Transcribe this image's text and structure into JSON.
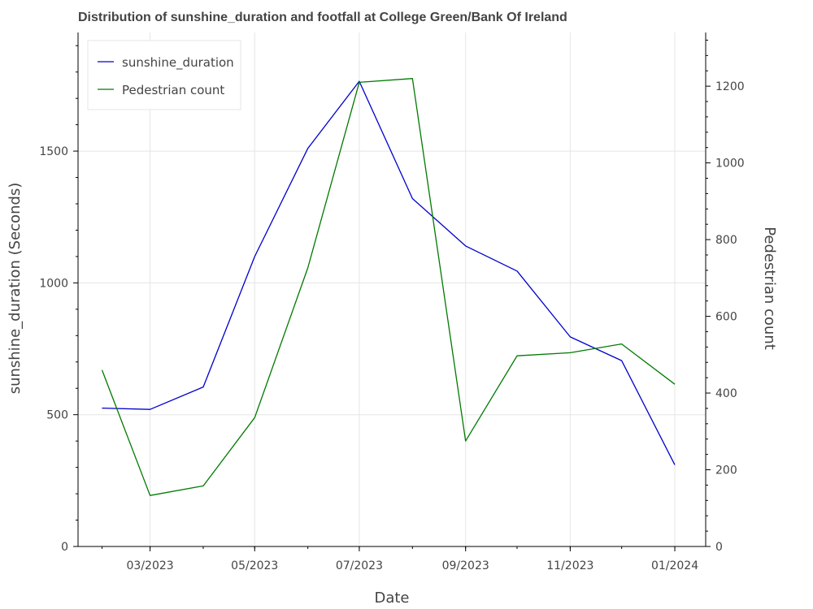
{
  "chart_data": {
    "type": "line",
    "title": "Distribution of sunshine_duration and footfall at College Green/Bank Of Ireland",
    "xlabel": "Date",
    "ylabel": "sunshine_duration (Seconds)",
    "y2label": "Pedestrian count",
    "x": [
      "2023-02-01",
      "2023-03-01",
      "2023-04-01",
      "2023-05-01",
      "2023-06-01",
      "2023-07-01",
      "2023-08-01",
      "2023-09-01",
      "2023-10-01",
      "2023-11-01",
      "2023-12-01",
      "2024-01-01"
    ],
    "xticks": [
      {
        "date": "2023-03-01",
        "label": "03/2023"
      },
      {
        "date": "2023-05-01",
        "label": "05/2023"
      },
      {
        "date": "2023-07-01",
        "label": "07/2023"
      },
      {
        "date": "2023-09-01",
        "label": "09/2023"
      },
      {
        "date": "2023-11-01",
        "label": "11/2023"
      },
      {
        "date": "2024-01-01",
        "label": "01/2024"
      }
    ],
    "xlim": [
      "2023-01-18",
      "2024-01-19"
    ],
    "ylim": [
      0,
      1950
    ],
    "yticks": [
      0,
      500,
      1000,
      1500
    ],
    "y2lim": [
      0,
      1340
    ],
    "y2ticks": [
      0,
      200,
      400,
      600,
      800,
      1000,
      1200
    ],
    "grid": true,
    "legend_position": "top-left",
    "series": [
      {
        "name": "sunshine_duration",
        "axis": "left",
        "color": "#0000cc",
        "values": [
          525,
          520,
          605,
          1100,
          1510,
          1765,
          1320,
          1140,
          1045,
          795,
          705,
          310
        ]
      },
      {
        "name": "Pedestrian count",
        "axis": "right",
        "color": "#007a00",
        "values": [
          460,
          133,
          158,
          336,
          726,
          1210,
          1220,
          275,
          497,
          505,
          528,
          423
        ]
      }
    ]
  }
}
